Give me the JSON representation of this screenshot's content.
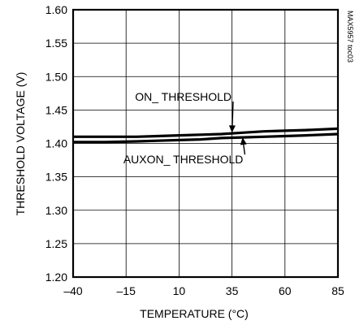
{
  "chart_data": {
    "type": "line",
    "xlabel": "TEMPERATURE (°C)",
    "ylabel": "THRESHOLD VOLTAGE (V)",
    "figure_id": "MAX5957 toc03",
    "xlim": [
      -40,
      85
    ],
    "ylim": [
      1.2,
      1.6
    ],
    "x_ticks": [
      -40,
      -15,
      10,
      35,
      60,
      85
    ],
    "x_tick_labels": [
      "-40",
      "-15",
      "10",
      "35",
      "60",
      "85"
    ],
    "y_ticks": [
      1.2,
      1.25,
      1.3,
      1.35,
      1.4,
      1.45,
      1.5,
      1.55,
      1.6
    ],
    "y_tick_labels": [
      "1.20",
      "1.25",
      "1.30",
      "1.35",
      "1.40",
      "1.45",
      "1.50",
      "1.55",
      "1.60"
    ],
    "grid": true,
    "series": [
      {
        "name": "ON_ THRESHOLD",
        "x": [
          -40,
          -25,
          -10,
          0,
          10,
          20,
          30,
          40,
          50,
          60,
          70,
          85
        ],
        "y": [
          1.41,
          1.41,
          1.41,
          1.411,
          1.412,
          1.413,
          1.414,
          1.416,
          1.418,
          1.419,
          1.42,
          1.422
        ]
      },
      {
        "name": "AUXON_ THRESHOLD",
        "x": [
          -40,
          -25,
          -10,
          0,
          10,
          20,
          30,
          40,
          50,
          60,
          70,
          85
        ],
        "y": [
          1.402,
          1.402,
          1.403,
          1.404,
          1.405,
          1.406,
          1.408,
          1.409,
          1.41,
          1.411,
          1.412,
          1.414
        ]
      }
    ],
    "annotations": [
      {
        "text": "ON_ THRESHOLD",
        "series": 0,
        "label_x": 12,
        "label_y": 1.47,
        "arrow_to_x": 35,
        "arrow_to_y": 1.416
      },
      {
        "text": "AUXON_ THRESHOLD",
        "series": 1,
        "label_x": 12,
        "label_y": 1.376,
        "arrow_to_x": 40,
        "arrow_to_y": 1.409
      }
    ]
  }
}
